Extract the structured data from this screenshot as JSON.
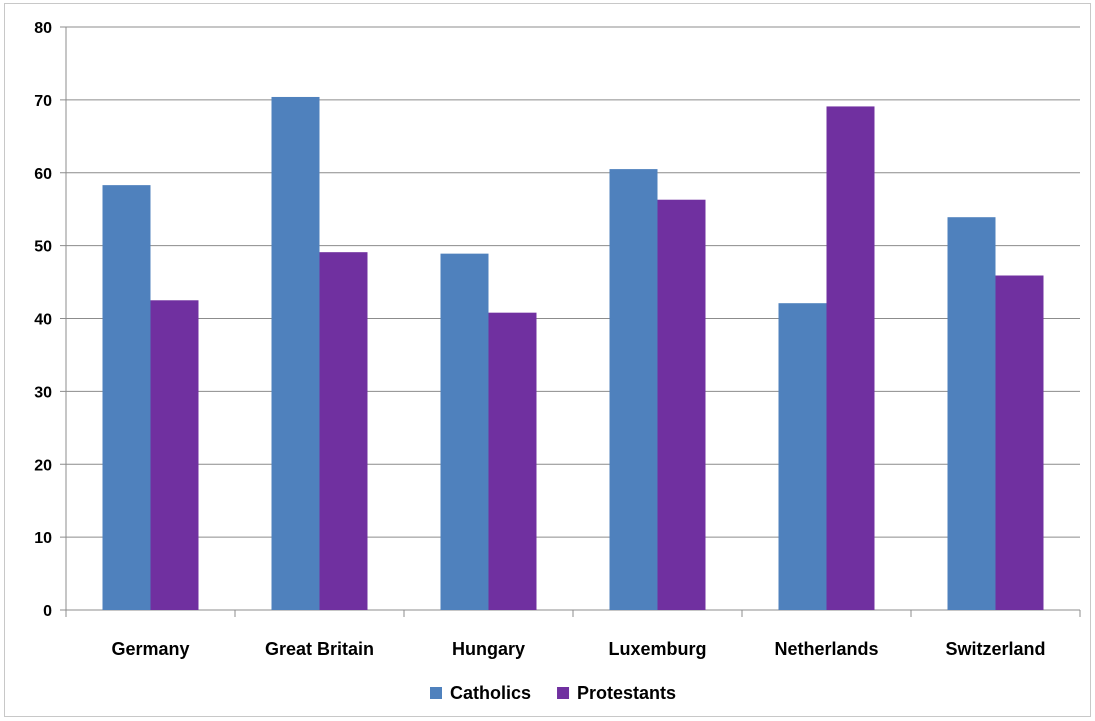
{
  "chart_data": {
    "type": "bar",
    "title": "",
    "xlabel": "",
    "ylabel": "",
    "categories": [
      "Germany",
      "Great Britain",
      "Hungary",
      "Luxemburg",
      "Netherlands",
      "Switzerland"
    ],
    "series": [
      {
        "name": "Catholics",
        "color": "#4f81bd",
        "values": [
          58.3,
          70.4,
          48.9,
          60.5,
          42.1,
          53.9
        ]
      },
      {
        "name": "Protestants",
        "color": "#7030a0",
        "values": [
          42.5,
          49.1,
          40.8,
          56.3,
          69.1,
          45.9
        ]
      }
    ],
    "ylim": [
      0,
      80
    ],
    "yticks": [
      "0",
      "10",
      "20",
      "30",
      "40",
      "50",
      "60",
      "70",
      "80"
    ],
    "grid": true,
    "legend": "bottom"
  }
}
